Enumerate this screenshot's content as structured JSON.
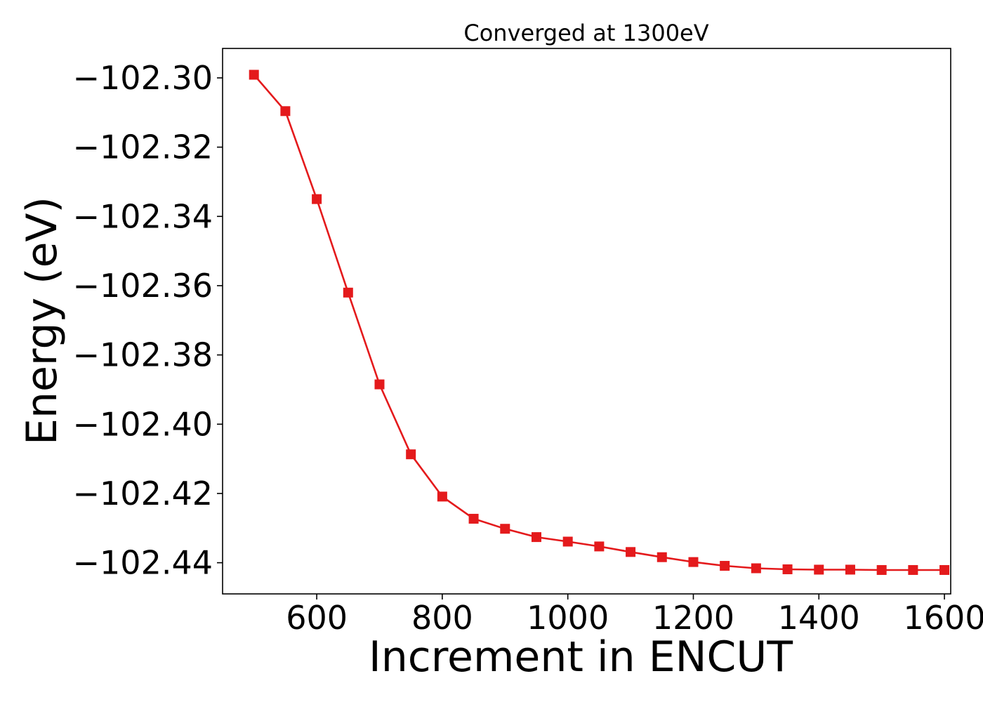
{
  "chart_data": {
    "type": "line",
    "title": "Converged at 1300eV",
    "xlabel": "Increment in ENCUT",
    "ylabel": "Energy (eV)",
    "xlim": [
      450,
      1610
    ],
    "ylim": [
      -102.449,
      -102.2915
    ],
    "xticks": [
      600,
      800,
      1000,
      1200,
      1400,
      1600
    ],
    "yticks": [
      -102.3,
      -102.32,
      -102.34,
      -102.36,
      -102.38,
      -102.4,
      -102.42,
      -102.44
    ],
    "ytick_labels": [
      "−102.30",
      "−102.32",
      "−102.34",
      "−102.36",
      "−102.38",
      "−102.40",
      "−102.42",
      "−102.44"
    ],
    "grid": false,
    "legend": "none",
    "color": "#e41a1c",
    "marker": "square",
    "series": [
      {
        "x": [
          500,
          550,
          600,
          650,
          700,
          750,
          800,
          850,
          900,
          950,
          1000,
          1050,
          1100,
          1150,
          1200,
          1250,
          1300,
          1350,
          1400,
          1450,
          1500,
          1550,
          1600
        ],
        "values": [
          -102.2991,
          -102.3096,
          -102.335,
          -102.362,
          -102.3885,
          -102.4087,
          -102.4209,
          -102.4273,
          -102.4302,
          -102.4326,
          -102.4339,
          -102.4353,
          -102.4369,
          -102.4384,
          -102.4398,
          -102.4409,
          -102.4416,
          -102.4419,
          -102.442,
          -102.442,
          -102.4421,
          -102.4421,
          -102.4421
        ]
      }
    ]
  }
}
